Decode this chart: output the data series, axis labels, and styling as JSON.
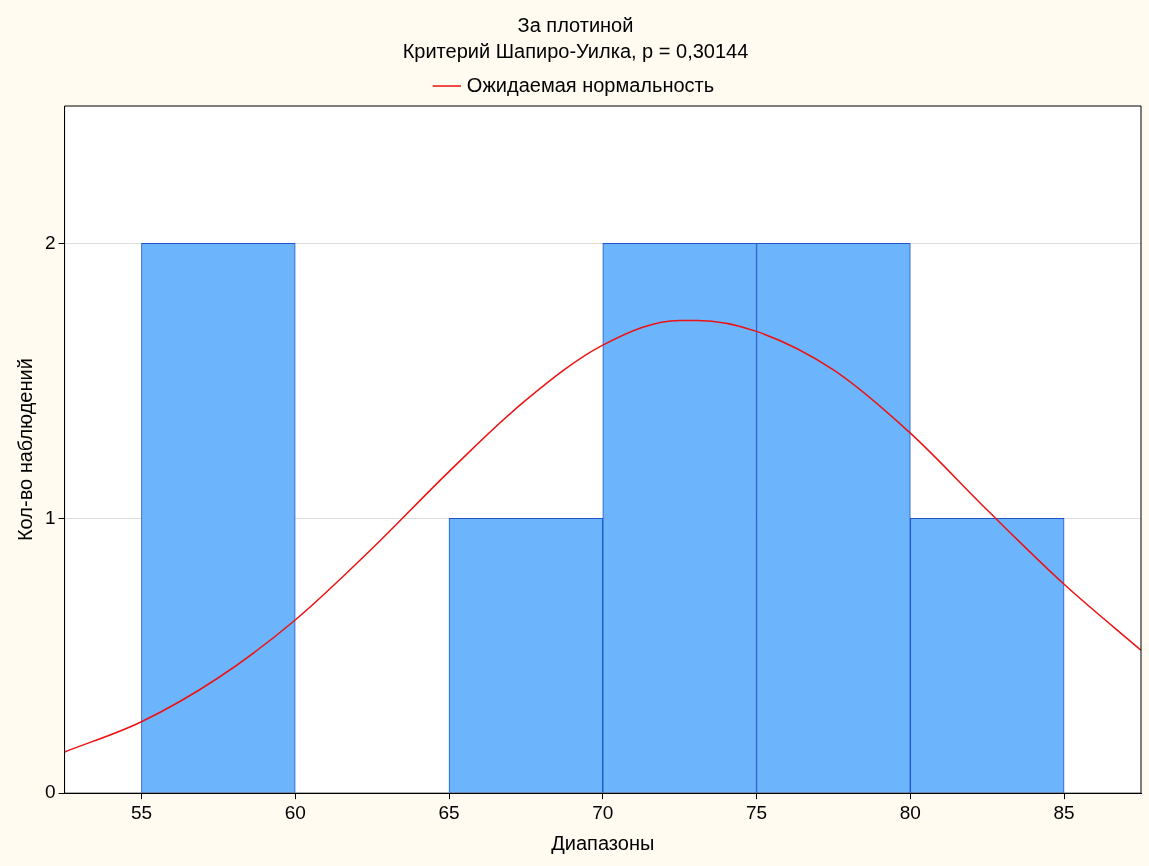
{
  "chart_data": {
    "type": "histogram",
    "title": "За плотиной",
    "subtitle": "Критерий Шапиро-Уилка, p = 0,30144",
    "xlabel": "Диапазоны",
    "ylabel": "Кол-во наблюдений",
    "bins": [
      55,
      60,
      65,
      70,
      75,
      80,
      85
    ],
    "values": [
      2,
      0,
      1,
      2,
      2,
      1
    ],
    "color": "#6cb4fc",
    "series": [
      {
        "name": "Ожидаемая нормальность",
        "type": "line",
        "color": "#ee1111",
        "x": [
          52.5,
          55,
          57.5,
          60,
          62.5,
          65,
          67.5,
          70,
          72.5,
          73.1,
          75,
          77.5,
          80,
          82.5,
          85,
          87.5
        ],
        "values": [
          0.15,
          0.26,
          0.42,
          0.63,
          0.89,
          1.17,
          1.43,
          1.63,
          1.72,
          1.72,
          1.68,
          1.54,
          1.31,
          1.03,
          0.76,
          0.52
        ]
      }
    ],
    "xlim": [
      52.5,
      87.5
    ],
    "xticks": [
      55,
      60,
      65,
      70,
      75,
      80,
      85
    ],
    "ylim": [
      0,
      2.5
    ],
    "yticks": [
      0,
      1,
      2
    ],
    "grid": "y",
    "legend": "top",
    "marker": "none",
    "line_style": "solid"
  }
}
